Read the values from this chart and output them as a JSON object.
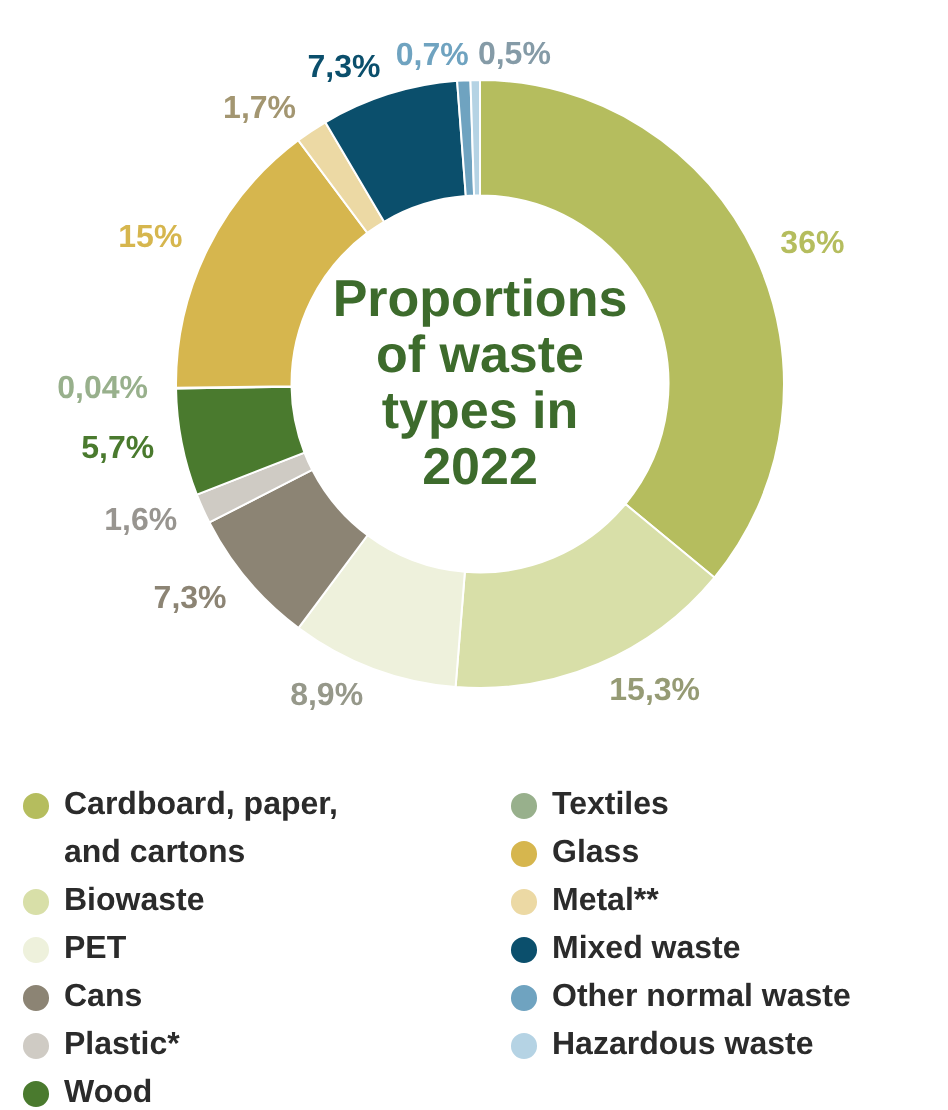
{
  "chart_data": {
    "type": "donut",
    "title": "Proportions of waste types in 2022",
    "categories": [
      "Cardboard, paper, and cartons",
      "Biowaste",
      "PET",
      "Cans",
      "Plastic*",
      "Wood",
      "Textiles",
      "Glass",
      "Metal**",
      "Mixed waste",
      "Other normal waste",
      "Hazardous waste"
    ],
    "values": [
      36,
      15.3,
      8.9,
      7.3,
      1.6,
      5.7,
      0.04,
      15,
      1.7,
      7.3,
      0.7,
      0.5
    ],
    "value_labels": [
      "36%",
      "15,3%",
      "8,9%",
      "7,3%",
      "1,6%",
      "5,7%",
      "0,04%",
      "15%",
      "1,7%",
      "7,3%",
      "0,7%",
      "0,5%"
    ],
    "colors": [
      "#b5bd5e",
      "#d8dfa8",
      "#eef1dc",
      "#8c8474",
      "#cfcbc4",
      "#4a7a2e",
      "#98b08c",
      "#d6b64e",
      "#ecd9a4",
      "#0b4f6c",
      "#6fa3c0",
      "#b5d3e4"
    ],
    "legend": "bottom"
  }
}
